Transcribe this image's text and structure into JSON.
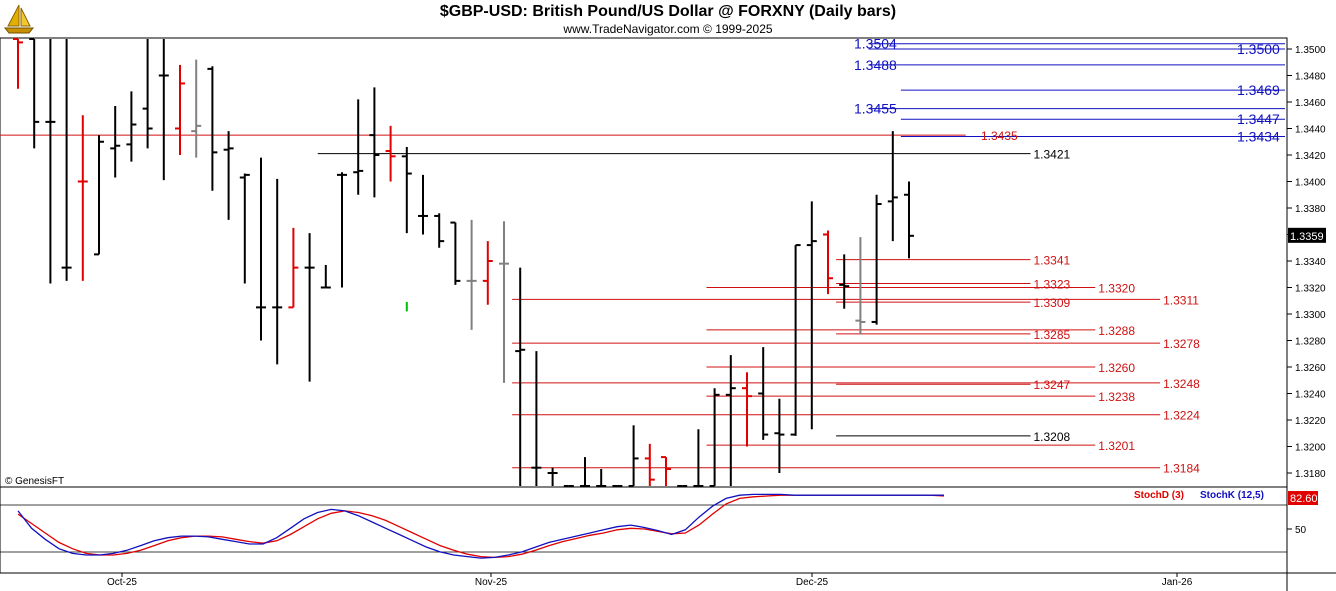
{
  "header": {
    "title": "$GBP-USD:  British Pound/US Dollar @ FORXNY  (Daily bars)",
    "subtitle": "www.TradeNavigator.com © 1999-2025"
  },
  "watermark": "© GenesisFT",
  "colors": {
    "bull": "#000000",
    "bear": "#e00000",
    "neutral": "#808080",
    "up_tick": "#00c000",
    "blue_levels": "#1010c0",
    "red_levels": "#d01010",
    "stoch_d": "#e00000",
    "stoch_k": "#1010c0",
    "badge": "#e00000"
  },
  "chart_data": [
    {
      "type": "ohlc",
      "ylim": [
        1.3162,
        1.3512
      ],
      "y_ticks": [
        "1.3500",
        "1.3480",
        "1.3460",
        "1.3440",
        "1.3420",
        "1.3400",
        "1.3380",
        "1.3360",
        "1.3340",
        "1.3320",
        "1.3300",
        "1.3280",
        "1.3260",
        "1.3240",
        "1.3220",
        "1.3200",
        "1.3180"
      ],
      "x_ticks": [
        "Oct-25",
        "Nov-25",
        "Dec-25",
        "Jan-26"
      ],
      "last_price": "1.3359",
      "bars": [
        {
          "o": 1.352,
          "h": 1.354,
          "l": 1.347,
          "c": 1.3505,
          "col": "bear"
        },
        {
          "o": 1.352,
          "h": 1.356,
          "l": 1.3425,
          "c": 1.3445,
          "col": "bull"
        },
        {
          "o": 1.3445,
          "h": 1.3512,
          "l": 1.3323,
          "c": 1.3445,
          "col": "bull"
        },
        {
          "o": 1.3335,
          "h": 1.3512,
          "l": 1.3325,
          "c": 1.3335,
          "col": "bull"
        },
        {
          "o": 1.34,
          "h": 1.345,
          "l": 1.3325,
          "c": 1.34,
          "col": "bear"
        },
        {
          "o": 1.3345,
          "h": 1.3435,
          "l": 1.3345,
          "c": 1.343,
          "col": "bull"
        },
        {
          "o": 1.3425,
          "h": 1.3457,
          "l": 1.3403,
          "c": 1.3427,
          "col": "bull"
        },
        {
          "o": 1.3428,
          "h": 1.3468,
          "l": 1.3415,
          "c": 1.3443,
          "col": "bull"
        },
        {
          "o": 1.3455,
          "h": 1.3512,
          "l": 1.3425,
          "c": 1.344,
          "col": "bull"
        },
        {
          "o": 1.348,
          "h": 1.3512,
          "l": 1.3401,
          "c": 1.348,
          "col": "bull"
        },
        {
          "o": 1.344,
          "h": 1.3488,
          "l": 1.342,
          "c": 1.3474,
          "col": "bear"
        },
        {
          "o": 1.3438,
          "h": 1.3492,
          "l": 1.3418,
          "c": 1.3442,
          "col": "neutral"
        },
        {
          "o": 1.3485,
          "h": 1.3487,
          "l": 1.3393,
          "c": 1.3422,
          "col": "bull"
        },
        {
          "o": 1.3424,
          "h": 1.3438,
          "l": 1.3371,
          "c": 1.3425,
          "col": "bull"
        },
        {
          "o": 1.3403,
          "h": 1.3406,
          "l": 1.3323,
          "c": 1.3405,
          "col": "bull"
        },
        {
          "o": 1.3305,
          "h": 1.3418,
          "l": 1.328,
          "c": 1.3305,
          "col": "bull"
        },
        {
          "o": 1.3305,
          "h": 1.3402,
          "l": 1.3262,
          "c": 1.3305,
          "col": "bull"
        },
        {
          "o": 1.3305,
          "h": 1.3365,
          "l": 1.3305,
          "c": 1.3335,
          "col": "bear"
        },
        {
          "o": 1.3335,
          "h": 1.3361,
          "l": 1.3249,
          "c": 1.3335,
          "col": "bull"
        },
        {
          "o": 1.332,
          "h": 1.3337,
          "l": 1.332,
          "c": 1.332,
          "col": "bull"
        },
        {
          "o": 1.3405,
          "h": 1.3407,
          "l": 1.332,
          "c": 1.3405,
          "col": "bull"
        },
        {
          "o": 1.3407,
          "h": 1.3462,
          "l": 1.339,
          "c": 1.3408,
          "col": "bull"
        },
        {
          "o": 1.3435,
          "h": 1.3471,
          "l": 1.3388,
          "c": 1.342,
          "col": "bull"
        },
        {
          "o": 1.3423,
          "h": 1.3442,
          "l": 1.34,
          "c": 1.3419,
          "col": "bear"
        },
        {
          "o": 1.3419,
          "h": 1.3426,
          "l": 1.3361,
          "c": 1.3406,
          "col": "bull"
        },
        {
          "o": 1.3374,
          "h": 1.3405,
          "l": 1.336,
          "c": 1.3374,
          "col": "bull"
        },
        {
          "o": 1.3374,
          "h": 1.3376,
          "l": 1.335,
          "c": 1.3355,
          "col": "bull"
        },
        {
          "o": 1.3369,
          "h": 1.3369,
          "l": 1.3322,
          "c": 1.3325,
          "col": "bull"
        },
        {
          "o": 1.3325,
          "h": 1.3371,
          "l": 1.3288,
          "c": 1.3325,
          "col": "neutral"
        },
        {
          "o": 1.3325,
          "h": 1.3355,
          "l": 1.3307,
          "c": 1.334,
          "col": "bear"
        },
        {
          "o": 1.3338,
          "h": 1.337,
          "l": 1.3248,
          "c": 1.3338,
          "col": "neutral"
        },
        {
          "o": 1.3272,
          "h": 1.3335,
          "l": 1.3162,
          "c": 1.3273,
          "col": "bull"
        },
        {
          "o": 1.3184,
          "h": 1.3272,
          "l": 1.3162,
          "c": 1.3184,
          "col": "bull"
        },
        {
          "o": 1.318,
          "h": 1.3184,
          "l": 1.3162,
          "c": 1.318,
          "col": "bull"
        },
        {
          "o": 1.3162,
          "h": 1.3164,
          "l": 1.3162,
          "c": 1.3164,
          "col": "bull"
        },
        {
          "o": 1.3167,
          "h": 1.3192,
          "l": 1.3162,
          "c": 1.3164,
          "col": "bull"
        },
        {
          "o": 1.3164,
          "h": 1.3183,
          "l": 1.3162,
          "c": 1.3164,
          "col": "bull"
        },
        {
          "o": 1.3164,
          "h": 1.3166,
          "l": 1.3162,
          "c": 1.3164,
          "col": "bull"
        },
        {
          "o": 1.3167,
          "h": 1.3216,
          "l": 1.3162,
          "c": 1.3191,
          "col": "bull"
        },
        {
          "o": 1.3191,
          "h": 1.3202,
          "l": 1.3162,
          "c": 1.3175,
          "col": "bear"
        },
        {
          "o": 1.3192,
          "h": 1.3192,
          "l": 1.3162,
          "c": 1.3183,
          "col": "bear"
        },
        {
          "o": 1.3166,
          "h": 1.3166,
          "l": 1.3162,
          "c": 1.3164,
          "col": "bull"
        },
        {
          "o": 1.3164,
          "h": 1.3213,
          "l": 1.3162,
          "c": 1.3164,
          "col": "bull"
        },
        {
          "o": 1.3164,
          "h": 1.3244,
          "l": 1.3162,
          "c": 1.3239,
          "col": "bull"
        },
        {
          "o": 1.3239,
          "h": 1.3269,
          "l": 1.3162,
          "c": 1.3244,
          "col": "bull"
        },
        {
          "o": 1.3244,
          "h": 1.3256,
          "l": 1.32,
          "c": 1.3238,
          "col": "bear"
        },
        {
          "o": 1.324,
          "h": 1.3275,
          "l": 1.3205,
          "c": 1.3209,
          "col": "bull"
        },
        {
          "o": 1.321,
          "h": 1.3236,
          "l": 1.318,
          "c": 1.3209,
          "col": "bull"
        },
        {
          "o": 1.3209,
          "h": 1.3352,
          "l": 1.3208,
          "c": 1.3352,
          "col": "bull"
        },
        {
          "o": 1.3352,
          "h": 1.3385,
          "l": 1.3213,
          "c": 1.3355,
          "col": "bull"
        },
        {
          "o": 1.336,
          "h": 1.3363,
          "l": 1.3315,
          "c": 1.3327,
          "col": "bear"
        },
        {
          "o": 1.3322,
          "h": 1.3345,
          "l": 1.3304,
          "c": 1.3321,
          "col": "bull"
        },
        {
          "o": 1.3295,
          "h": 1.3358,
          "l": 1.3285,
          "c": 1.3294,
          "col": "neutral"
        },
        {
          "o": 1.3294,
          "h": 1.339,
          "l": 1.3292,
          "c": 1.3383,
          "col": "bull"
        },
        {
          "o": 1.3385,
          "h": 1.3438,
          "l": 1.3355,
          "c": 1.3388,
          "col": "bull"
        },
        {
          "o": 1.339,
          "h": 1.34,
          "l": 1.3342,
          "c": 1.3359,
          "col": "bull"
        }
      ],
      "levels": [
        {
          "value": 1.3504,
          "label": "1.3504",
          "x1_bar": 52.5,
          "x2_bar": 78.5,
          "label_side": "left",
          "color": "blue"
        },
        {
          "value": 1.35,
          "label": "1.3500",
          "x1_bar": 52.5,
          "x2_bar": 78.5,
          "label_side": "right",
          "color": "blue"
        },
        {
          "value": 1.3488,
          "label": "1.3488",
          "x1_bar": 52.5,
          "x2_bar": 78.5,
          "label_side": "left",
          "color": "blue"
        },
        {
          "value": 1.3469,
          "label": "1.3469",
          "x1_bar": 54.5,
          "x2_bar": 78.5,
          "label_side": "right",
          "color": "blue"
        },
        {
          "value": 1.3455,
          "label": "1.3455",
          "x1_bar": 52.5,
          "x2_bar": 78.5,
          "label_side": "left",
          "color": "blue"
        },
        {
          "value": 1.3447,
          "label": "1.3447",
          "x1_bar": 54.5,
          "x2_bar": 78.5,
          "label_side": "right",
          "color": "blue"
        },
        {
          "value": 1.3434,
          "label": "1.3434",
          "x1_bar": 54.5,
          "x2_bar": 78.5,
          "label_side": "right",
          "color": "blue"
        },
        {
          "value": 1.3435,
          "label": "1.3435",
          "x1_bar": -2,
          "x2_bar": 58.5,
          "label_side": "right",
          "color": "red"
        },
        {
          "value": 1.3421,
          "label": "1.3421",
          "x1_bar": 18.5,
          "x2_bar": 62.5,
          "label_side": "right",
          "color": "black"
        },
        {
          "value": 1.3341,
          "label": "1.3341",
          "x1_bar": 50.5,
          "x2_bar": 62.5,
          "label_side": "right",
          "color": "red"
        },
        {
          "value": 1.3323,
          "label": "1.3323",
          "x1_bar": 50.5,
          "x2_bar": 62.5,
          "label_side": "right",
          "color": "red"
        },
        {
          "value": 1.332,
          "label": "1.3320",
          "x1_bar": 42.5,
          "x2_bar": 66.5,
          "label_side": "right",
          "color": "red"
        },
        {
          "value": 1.3311,
          "label": "1.3311",
          "x1_bar": 30.5,
          "x2_bar": 70.5,
          "label_side": "right",
          "color": "red"
        },
        {
          "value": 1.3309,
          "label": "1.3309",
          "x1_bar": 50.5,
          "x2_bar": 62.5,
          "label_side": "right",
          "color": "red"
        },
        {
          "value": 1.3288,
          "label": "1.3288",
          "x1_bar": 42.5,
          "x2_bar": 66.5,
          "label_side": "right",
          "color": "red"
        },
        {
          "value": 1.3285,
          "label": "1.3285",
          "x1_bar": 50.5,
          "x2_bar": 62.5,
          "label_side": "right",
          "color": "red"
        },
        {
          "value": 1.3278,
          "label": "1.3278",
          "x1_bar": 30.5,
          "x2_bar": 70.5,
          "label_side": "right",
          "color": "red"
        },
        {
          "value": 1.326,
          "label": "1.3260",
          "x1_bar": 42.5,
          "x2_bar": 66.5,
          "label_side": "right",
          "color": "red"
        },
        {
          "value": 1.3248,
          "label": "1.3248",
          "x1_bar": 30.5,
          "x2_bar": 70.5,
          "label_side": "right",
          "color": "red"
        },
        {
          "value": 1.3247,
          "label": "1.3247",
          "x1_bar": 50.5,
          "x2_bar": 62.5,
          "label_side": "right",
          "color": "red"
        },
        {
          "value": 1.3238,
          "label": "1.3238",
          "x1_bar": 42.5,
          "x2_bar": 66.5,
          "label_side": "right",
          "color": "red"
        },
        {
          "value": 1.3224,
          "label": "1.3224",
          "x1_bar": 30.5,
          "x2_bar": 70.5,
          "label_side": "right",
          "color": "red"
        },
        {
          "value": 1.3208,
          "label": "1.3208",
          "x1_bar": 50.5,
          "x2_bar": 62.5,
          "label_side": "right",
          "color": "black"
        },
        {
          "value": 1.3201,
          "label": "1.3201",
          "x1_bar": 42.5,
          "x2_bar": 66.5,
          "label_side": "right",
          "color": "red"
        },
        {
          "value": 1.3184,
          "label": "1.3184",
          "x1_bar": 30.5,
          "x2_bar": 70.5,
          "label_side": "right",
          "color": "red"
        }
      ]
    },
    {
      "type": "line",
      "series": [
        {
          "name": "StochD (3)",
          "color": "stoch_d",
          "values": [
            62,
            50,
            38,
            26,
            18,
            12,
            10,
            10,
            12,
            16,
            22,
            28,
            32,
            34,
            34,
            33,
            30,
            27,
            25,
            28,
            36,
            46,
            56,
            63,
            66,
            64,
            60,
            54,
            46,
            38,
            30,
            22,
            16,
            11,
            8,
            7,
            8,
            11,
            16,
            22,
            27,
            31,
            35,
            38,
            42,
            44,
            43,
            40,
            37,
            38,
            48,
            62,
            75,
            82,
            84,
            85,
            86,
            86,
            86,
            86,
            86,
            86,
            86,
            86,
            86,
            86,
            86,
            86,
            85
          ]
        },
        {
          "name": "StochK (12,5)",
          "color": "stoch_k",
          "values": [
            66,
            44,
            30,
            18,
            12,
            10,
            10,
            12,
            16,
            22,
            28,
            32,
            34,
            34,
            33,
            30,
            27,
            24,
            24,
            32,
            44,
            56,
            64,
            68,
            66,
            60,
            52,
            44,
            36,
            28,
            20,
            14,
            10,
            8,
            6,
            7,
            10,
            14,
            20,
            26,
            30,
            34,
            38,
            42,
            46,
            48,
            45,
            41,
            36,
            42,
            58,
            72,
            82,
            86,
            87,
            87,
            87,
            86,
            86,
            86,
            86,
            86,
            86,
            86,
            86,
            86,
            86,
            86,
            86
          ]
        }
      ],
      "y_ticks": [
        "50"
      ],
      "last_value": "82.60"
    }
  ]
}
